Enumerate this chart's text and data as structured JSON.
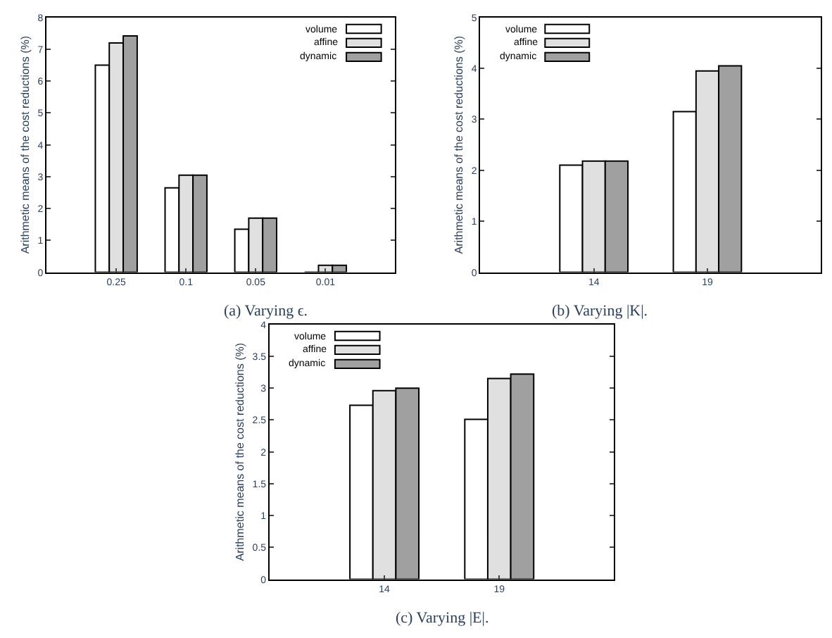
{
  "chart_data": [
    {
      "type": "bar",
      "categories": [
        "0.25",
        "0.1",
        "0.05",
        "0.01"
      ],
      "ylabel": "Arithmetic means of the cost reductions (%)",
      "ylim": [
        0,
        8
      ],
      "yticks": [
        0,
        1,
        2,
        3,
        4,
        5,
        6,
        7,
        8
      ],
      "legend": "top right",
      "annotations": [
        "(a) Varying ϵ."
      ],
      "series": [
        {
          "name": "volume",
          "color": "#ffffff",
          "values": [
            6.5,
            2.65,
            1.35,
            0
          ]
        },
        {
          "name": "affine",
          "color": "#e0e0e0",
          "values": [
            7.2,
            3.05,
            1.7,
            0.22
          ]
        },
        {
          "name": "dynamic",
          "color": "#a0a0a0",
          "values": [
            7.42,
            3.05,
            1.7,
            0.22
          ]
        }
      ]
    },
    {
      "type": "bar",
      "categories": [
        "14",
        "19"
      ],
      "ylabel": "Arithmetic means of the cost reductions (%)",
      "ylim": [
        0,
        5
      ],
      "yticks": [
        0,
        1,
        2,
        3,
        4,
        5
      ],
      "legend": "top left",
      "annotations": [
        "(b) Varying |K|."
      ],
      "series": [
        {
          "name": "volume",
          "color": "#ffffff",
          "values": [
            2.1,
            3.15
          ]
        },
        {
          "name": "affine",
          "color": "#e0e0e0",
          "values": [
            2.18,
            3.95
          ]
        },
        {
          "name": "dynamic",
          "color": "#a0a0a0",
          "values": [
            2.18,
            4.05
          ]
        }
      ]
    },
    {
      "type": "bar",
      "categories": [
        "14",
        "19"
      ],
      "ylabel": "Arithmetic means of the cost reductions (%)",
      "ylim": [
        0,
        4
      ],
      "yticks": [
        0,
        0.5,
        1,
        1.5,
        2,
        2.5,
        3,
        3.5,
        4
      ],
      "legend": "top left",
      "annotations": [
        "(c) Varying |E|."
      ],
      "series": [
        {
          "name": "volume",
          "color": "#ffffff",
          "values": [
            2.73,
            2.51
          ]
        },
        {
          "name": "affine",
          "color": "#e0e0e0",
          "values": [
            2.96,
            3.15
          ]
        },
        {
          "name": "dynamic",
          "color": "#a0a0a0",
          "values": [
            3.0,
            3.22
          ]
        }
      ]
    }
  ]
}
